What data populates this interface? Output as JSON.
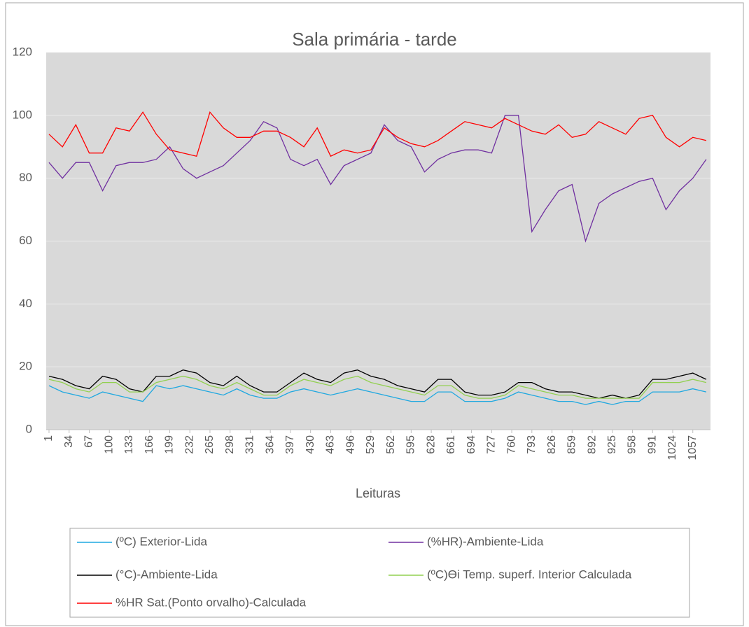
{
  "chart_data": {
    "type": "line",
    "title": "Sala primária - tarde",
    "x_label": "Leituras",
    "x": [
      1,
      23,
      45,
      67,
      89,
      111,
      133,
      155,
      177,
      199,
      221,
      243,
      265,
      287,
      309,
      331,
      353,
      375,
      397,
      419,
      441,
      463,
      485,
      507,
      529,
      551,
      573,
      595,
      617,
      639,
      661,
      683,
      705,
      727,
      749,
      771,
      793,
      815,
      837,
      859,
      881,
      903,
      925,
      947,
      969,
      991,
      1013,
      1035,
      1057,
      1079
    ],
    "xlim": [
      1,
      1086
    ],
    "xticks": [
      1,
      34,
      67,
      100,
      133,
      166,
      199,
      232,
      265,
      298,
      331,
      364,
      397,
      430,
      463,
      496,
      529,
      562,
      595,
      628,
      661,
      694,
      727,
      760,
      793,
      826,
      859,
      892,
      925,
      958,
      991,
      1024,
      1057
    ],
    "ylim": [
      0,
      120
    ],
    "yticks": [
      0,
      20,
      40,
      60,
      80,
      100,
      120
    ],
    "grid": true,
    "series": [
      {
        "name": "(ºC) Exterior-Lida",
        "color": "#1fa8e0",
        "values": [
          14,
          12,
          11,
          10,
          12,
          11,
          10,
          9,
          14,
          13,
          14,
          13,
          12,
          11,
          13,
          11,
          10,
          10,
          12,
          13,
          12,
          11,
          12,
          13,
          12,
          11,
          10,
          9,
          9,
          12,
          12,
          9,
          9,
          9,
          10,
          12,
          11,
          10,
          9,
          9,
          8,
          9,
          8,
          9,
          9,
          12,
          12,
          12,
          13,
          12
        ]
      },
      {
        "name": "(%HR)-Ambiente-Lida",
        "color": "#7030a0",
        "values": [
          85,
          80,
          85,
          85,
          76,
          84,
          85,
          85,
          86,
          90,
          83,
          80,
          82,
          84,
          88,
          92,
          98,
          96,
          86,
          84,
          86,
          78,
          84,
          86,
          88,
          97,
          92,
          90,
          82,
          86,
          88,
          89,
          89,
          88,
          100,
          100,
          63,
          70,
          76,
          78,
          60,
          72,
          75,
          77,
          79,
          80,
          70,
          76,
          80,
          86
        ]
      },
      {
        "name": " (°C)-Ambiente-Lida",
        "color": "#000000",
        "values": [
          17,
          16,
          14,
          13,
          17,
          16,
          13,
          12,
          17,
          17,
          19,
          18,
          15,
          14,
          17,
          14,
          12,
          12,
          15,
          18,
          16,
          15,
          18,
          19,
          17,
          16,
          14,
          13,
          12,
          16,
          16,
          12,
          11,
          11,
          12,
          15,
          15,
          13,
          12,
          12,
          11,
          10,
          11,
          10,
          11,
          16,
          16,
          17,
          18,
          16
        ]
      },
      {
        "name": "(ºC)Өi Temp. superf.  Interior Calculada",
        "color": "#92d050",
        "values": [
          16,
          15,
          13,
          12,
          15,
          15,
          12,
          12,
          15,
          16,
          17,
          16,
          14,
          13,
          15,
          13,
          11,
          11,
          14,
          16,
          15,
          14,
          16,
          17,
          15,
          14,
          13,
          12,
          11,
          14,
          14,
          11,
          10,
          10,
          11,
          14,
          13,
          12,
          11,
          11,
          10,
          10,
          10,
          10,
          10,
          15,
          15,
          15,
          16,
          15
        ]
      },
      {
        "name": "%HR  Sat.(Ponto orvalho)-Calculada",
        "color": "#ff0000",
        "values": [
          94,
          90,
          97,
          88,
          88,
          96,
          95,
          101,
          94,
          89,
          88,
          87,
          101,
          96,
          93,
          93,
          95,
          95,
          93,
          90,
          96,
          87,
          89,
          88,
          89,
          96,
          93,
          91,
          90,
          92,
          95,
          98,
          97,
          96,
          99,
          97,
          95,
          94,
          97,
          93,
          94,
          98,
          96,
          94,
          99,
          100,
          93,
          90,
          93,
          92
        ]
      }
    ]
  }
}
